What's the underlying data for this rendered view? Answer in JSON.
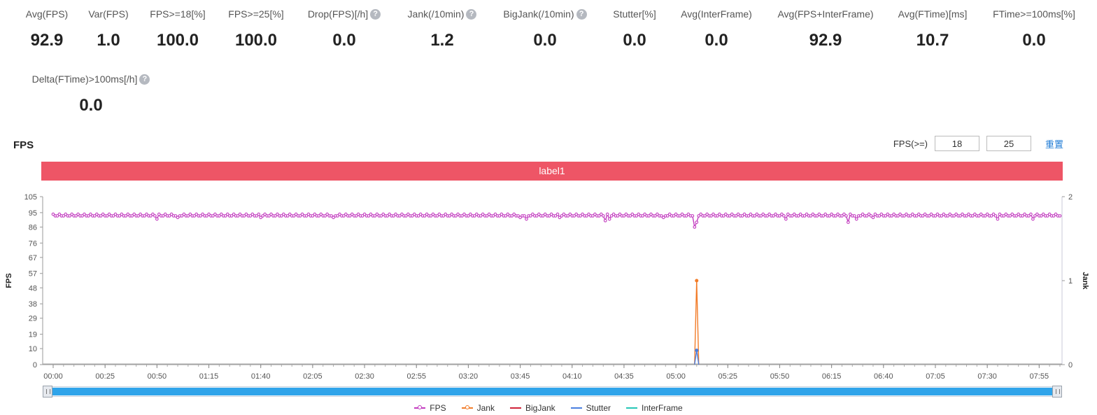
{
  "metrics": [
    {
      "label": "Avg(FPS)",
      "value": "92.9",
      "help": false
    },
    {
      "label": "Var(FPS)",
      "value": "1.0",
      "help": false
    },
    {
      "label": "FPS>=18[%]",
      "value": "100.0",
      "help": false
    },
    {
      "label": "FPS>=25[%]",
      "value": "100.0",
      "help": false
    },
    {
      "label": "Drop(FPS)[/h]",
      "value": "0.0",
      "help": true
    },
    {
      "label": "Jank(/10min)",
      "value": "1.2",
      "help": true
    },
    {
      "label": "BigJank(/10min)",
      "value": "0.0",
      "help": true
    },
    {
      "label": "Stutter[%]",
      "value": "0.0",
      "help": false
    },
    {
      "label": "Avg(InterFrame)",
      "value": "0.0",
      "help": false
    },
    {
      "label": "Avg(FPS+InterFrame)",
      "value": "92.9",
      "help": false
    },
    {
      "label": "Avg(FTime)[ms]",
      "value": "10.7",
      "help": false
    },
    {
      "label": "FTime>=100ms[%]",
      "value": "0.0",
      "help": false
    },
    {
      "label": "Delta(FTime)>100ms[/h]",
      "value": "0.0",
      "help": true
    }
  ],
  "help_glyph": "?",
  "section_title": "FPS",
  "threshold": {
    "label": "FPS(>=)",
    "value1": "18",
    "value2": "25",
    "reset_label": "重置"
  },
  "label_bar": "label1",
  "chart_data": {
    "type": "line",
    "title": "",
    "ylabel": "FPS",
    "y2label": "Jank",
    "ylim": [
      0,
      105
    ],
    "y2lim": [
      0,
      2
    ],
    "yticks": [
      0,
      10,
      19,
      29,
      38,
      48,
      57,
      67,
      76,
      86,
      95,
      105
    ],
    "y2ticks": [
      0,
      1,
      2
    ],
    "xlim_seconds": [
      0,
      485
    ],
    "xtick_labels": [
      "00:00",
      "00:25",
      "00:50",
      "01:15",
      "01:40",
      "02:05",
      "02:30",
      "02:55",
      "03:20",
      "03:45",
      "04:10",
      "04:35",
      "05:00",
      "05:25",
      "05:50",
      "06:15",
      "06:40",
      "07:05",
      "07:30",
      "07:55"
    ],
    "series": [
      {
        "name": "FPS",
        "color": "#c23bbf",
        "axis": "left",
        "base": 93,
        "dips": [
          [
            3,
            94
          ],
          [
            50,
            91
          ],
          [
            60,
            92
          ],
          [
            100,
            92
          ],
          [
            135,
            92
          ],
          [
            225,
            92
          ],
          [
            228,
            91
          ],
          [
            244,
            92
          ],
          [
            266,
            90
          ],
          [
            268,
            91
          ],
          [
            294,
            92
          ],
          [
            309,
            86
          ],
          [
            310,
            89
          ],
          [
            353,
            91
          ],
          [
            383,
            89
          ],
          [
            387,
            91
          ],
          [
            395,
            92
          ],
          [
            455,
            91
          ],
          [
            472,
            91
          ]
        ]
      },
      {
        "name": "Jank",
        "color": "#f27c29",
        "axis": "right",
        "events": [
          [
            310,
            1
          ]
        ]
      },
      {
        "name": "BigJank",
        "color": "#d0233a",
        "axis": "right",
        "events": []
      },
      {
        "name": "Stutter",
        "color": "#4a7fe0",
        "axis": "right",
        "events": [
          [
            310,
            0.17
          ]
        ]
      },
      {
        "name": "InterFrame",
        "color": "#26c6b6",
        "axis": "right",
        "events": []
      }
    ],
    "legend_position": "bottom"
  }
}
